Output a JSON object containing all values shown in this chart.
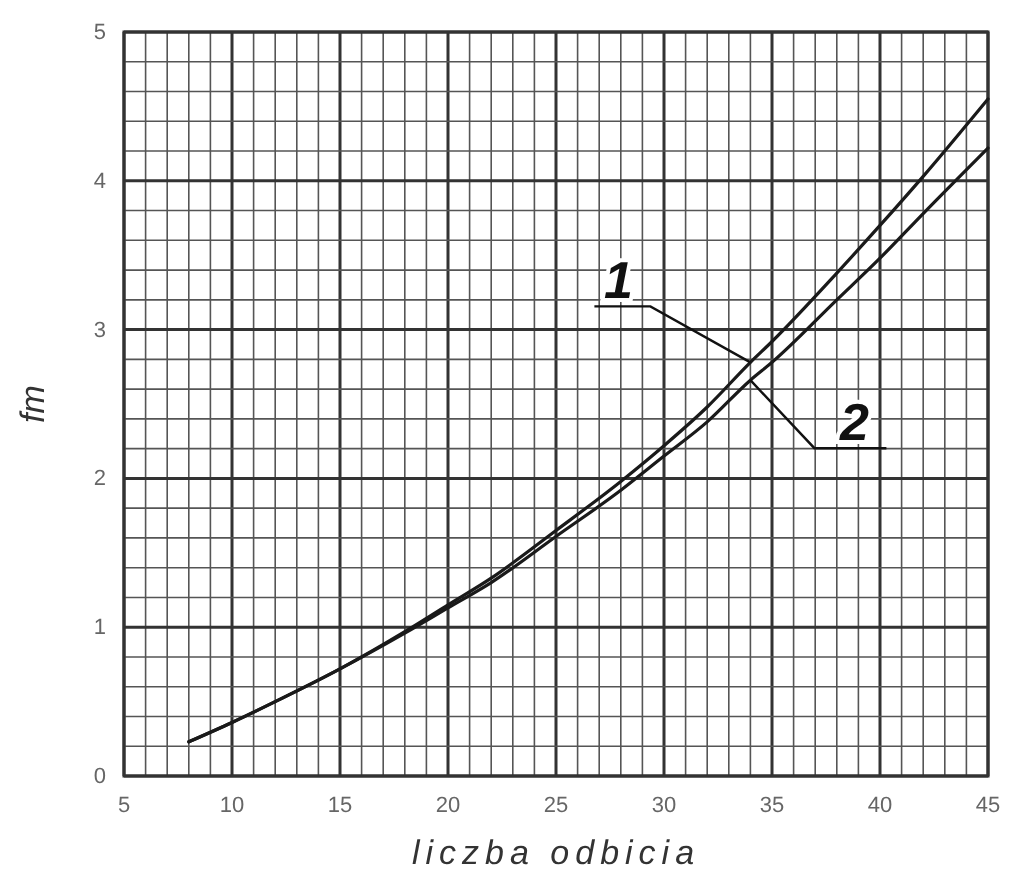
{
  "chart_data": {
    "type": "line",
    "xlabel": "liczba odbicia",
    "ylabel": "fm",
    "xlim": [
      5,
      45
    ],
    "ylim": [
      0,
      5
    ],
    "xticks": [
      5,
      10,
      15,
      20,
      25,
      30,
      35,
      40,
      45
    ],
    "yticks": [
      0,
      1,
      2,
      3,
      4,
      5
    ],
    "grid": true,
    "line_style": "solid",
    "marker": "none",
    "series": [
      {
        "name": "1",
        "color": "#1a1a1a",
        "x": [
          8,
          10,
          12,
          15,
          18,
          20,
          22,
          25,
          28,
          30,
          32,
          34,
          35,
          38,
          40,
          42,
          45
        ],
        "values": [
          0.23,
          0.36,
          0.5,
          0.72,
          0.97,
          1.15,
          1.33,
          1.65,
          1.98,
          2.22,
          2.48,
          2.78,
          2.92,
          3.38,
          3.7,
          4.03,
          4.55
        ]
      },
      {
        "name": "2",
        "color": "#1a1a1a",
        "x": [
          8,
          10,
          12,
          15,
          18,
          20,
          22,
          25,
          28,
          30,
          32,
          34,
          35,
          38,
          40,
          42,
          45
        ],
        "values": [
          0.23,
          0.36,
          0.5,
          0.72,
          0.96,
          1.13,
          1.3,
          1.61,
          1.92,
          2.15,
          2.38,
          2.66,
          2.78,
          3.2,
          3.48,
          3.78,
          4.22
        ]
      }
    ]
  }
}
